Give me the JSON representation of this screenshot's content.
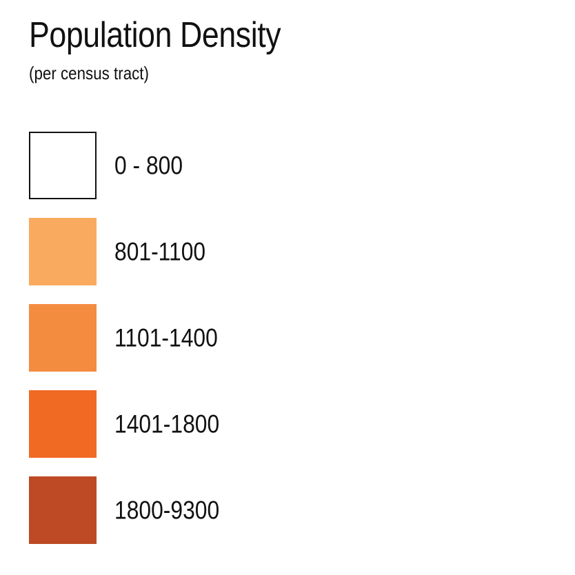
{
  "legend": {
    "title": "Population Density",
    "subtitle": "(per census tract)",
    "items": [
      {
        "label": "0 - 800",
        "color": "#ffffff",
        "outlined": true
      },
      {
        "label": "801-1100",
        "color": "#f9aa5e",
        "outlined": false
      },
      {
        "label": "1101-1400",
        "color": "#f48c40",
        "outlined": false
      },
      {
        "label": "1401-1800",
        "color": "#f06a24",
        "outlined": false
      },
      {
        "label": "1800-9300",
        "color": "#bd4a25",
        "outlined": false
      }
    ]
  }
}
